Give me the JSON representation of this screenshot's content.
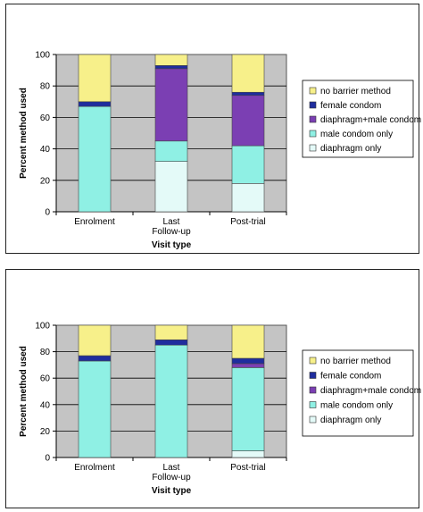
{
  "legend_labels": [
    "no barrier method",
    "female condom",
    "diaphragm+male condom",
    "male condom only",
    "diaphragm only"
  ],
  "colors": {
    "no barrier method": "#F7F08A",
    "female condom": "#1F2D9E",
    "diaphragm+male condom": "#7B3FB3",
    "male condom only": "#8FF0E4",
    "diaphragm only": "#E4FAF8",
    "plot_bg": "#C4C4C4"
  },
  "chart_data": [
    {
      "type": "bar",
      "stacked": true,
      "categories": [
        "Enrolment",
        "Last\nFollow-up",
        "Post-trial"
      ],
      "xlabel": "Visit type",
      "ylabel": "Percent method used",
      "ylim": [
        0,
        100
      ],
      "yticks": [
        0,
        20,
        40,
        60,
        80,
        100
      ],
      "grid": true,
      "legend_position": "right",
      "series": [
        {
          "name": "diaphragm only",
          "values": [
            0,
            32,
            18
          ]
        },
        {
          "name": "male condom only",
          "values": [
            67,
            13,
            24
          ]
        },
        {
          "name": "diaphragm+male condom",
          "values": [
            0,
            46,
            32
          ]
        },
        {
          "name": "female condom",
          "values": [
            3,
            2,
            2
          ]
        },
        {
          "name": "no barrier method",
          "values": [
            30,
            7,
            24
          ]
        }
      ]
    },
    {
      "type": "bar",
      "stacked": true,
      "categories": [
        "Enrolment",
        "Last\nFollow-up",
        "Post-trial"
      ],
      "xlabel": "Visit type",
      "ylabel": "Percent method used",
      "ylim": [
        0,
        100
      ],
      "yticks": [
        0,
        20,
        40,
        60,
        80,
        100
      ],
      "grid": true,
      "legend_position": "right",
      "series": [
        {
          "name": "diaphragm only",
          "values": [
            0,
            0,
            5
          ]
        },
        {
          "name": "male condom only",
          "values": [
            73,
            85,
            63
          ]
        },
        {
          "name": "diaphragm+male condom",
          "values": [
            0,
            0,
            3
          ]
        },
        {
          "name": "female condom",
          "values": [
            4,
            4,
            4
          ]
        },
        {
          "name": "no barrier method",
          "values": [
            23,
            11,
            25
          ]
        }
      ]
    }
  ]
}
